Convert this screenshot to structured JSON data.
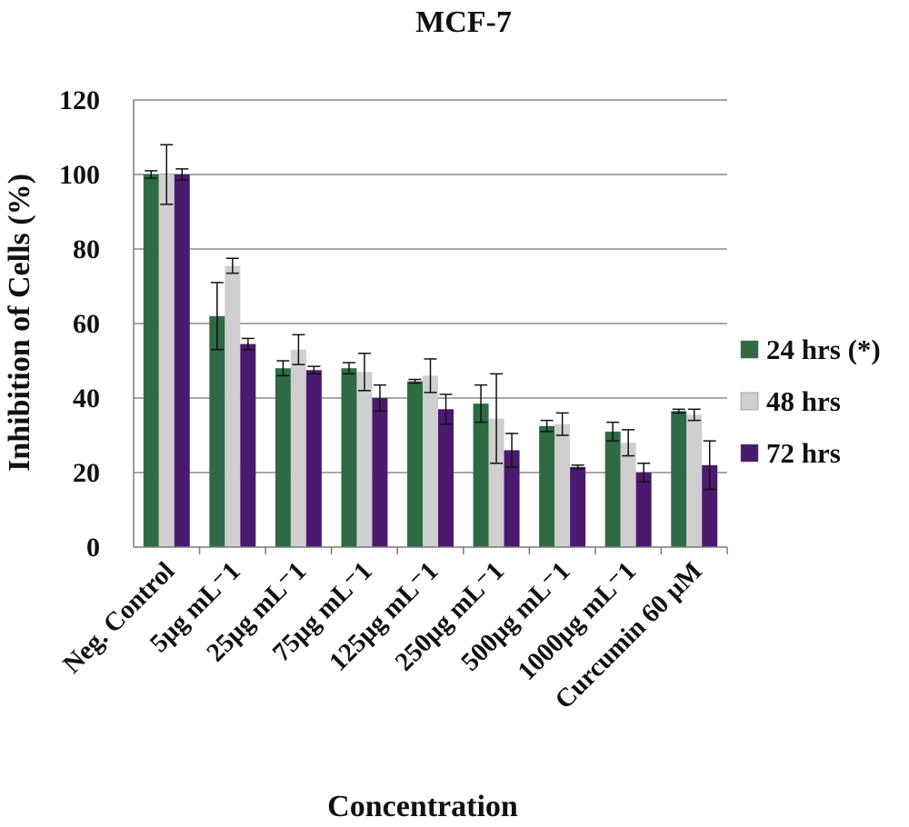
{
  "chart_data": {
    "type": "bar",
    "title": "MCF-7",
    "xlabel": "Concentration",
    "ylabel": "Inhibition of Cells (%)",
    "ylim": [
      0,
      120
    ],
    "yticks": [
      0,
      20,
      40,
      60,
      80,
      100,
      120
    ],
    "grid": true,
    "legend_position": "right",
    "categories": [
      "Neg. Control",
      "5µg mL⁻1",
      "25µg mL⁻1",
      "75µg mL⁻1",
      "125µg mL⁻1",
      "250µg mL⁻1",
      "500µg mL⁻1",
      "1000µg mL⁻1",
      "Curcumin 60 µM"
    ],
    "series": [
      {
        "name": "24 hrs (*)",
        "color": "#2e6b45",
        "values": [
          100,
          62,
          48,
          48,
          44.5,
          38.5,
          32.5,
          31,
          36.5
        ],
        "errors": [
          1,
          9,
          2,
          1.5,
          0.5,
          5,
          1.5,
          2.5,
          0.5
        ]
      },
      {
        "name": "48 hrs",
        "color": "#cfcfcf",
        "values": [
          100,
          75.5,
          53,
          47,
          46,
          34.5,
          33,
          28,
          35.5
        ],
        "errors": [
          8,
          2,
          4,
          5,
          4.5,
          12,
          3,
          3.5,
          1.5
        ]
      },
      {
        "name": "72 hrs",
        "color": "#4a1a6e",
        "values": [
          100,
          54.5,
          47.5,
          40,
          37,
          26,
          21.5,
          20,
          22
        ],
        "errors": [
          1.5,
          1.5,
          1,
          3.5,
          4,
          4.5,
          0.5,
          2.5,
          6.5
        ]
      }
    ]
  }
}
